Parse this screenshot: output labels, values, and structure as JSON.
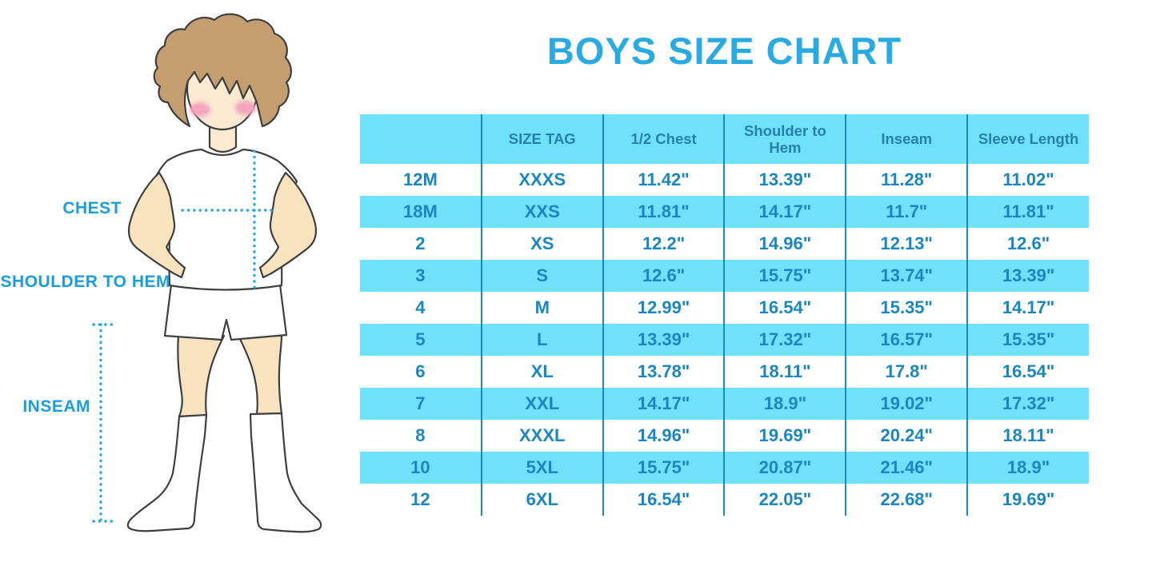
{
  "title": "BOYS SIZE CHART",
  "figure": {
    "description": "cartoon boy in white t-shirt, shorts and knee socks with dotted measurement guides",
    "labels": {
      "chest": "CHEST",
      "shoulder_to_hem": "SHOULDER TO HEM",
      "inseam": "INSEAM"
    }
  },
  "colors": {
    "title_blue": "#29ABE2",
    "label_blue": "#189FDB",
    "stripe_cyan": "#70E1FA",
    "divider_blue": "#1787C6",
    "header_text": "#2581AC",
    "cell_text": "#1987C3",
    "dotted_line": "#29A9E0"
  },
  "chart_data": {
    "type": "table",
    "title": "BOYS SIZE CHART",
    "columns": [
      "",
      "SIZE TAG",
      "1/2 Chest",
      "Shoulder to Hem",
      "Inseam",
      "Sleeve Length"
    ],
    "rows": [
      [
        "12M",
        "XXXS",
        "11.42\"",
        "13.39\"",
        "11.28\"",
        "11.02\""
      ],
      [
        "18M",
        "XXS",
        "11.81\"",
        "14.17\"",
        "11.7\"",
        "11.81\""
      ],
      [
        "2",
        "XS",
        "12.2\"",
        "14.96\"",
        "12.13\"",
        "12.6\""
      ],
      [
        "3",
        "S",
        "12.6\"",
        "15.75\"",
        "13.74\"",
        "13.39\""
      ],
      [
        "4",
        "M",
        "12.99\"",
        "16.54\"",
        "15.35\"",
        "14.17\""
      ],
      [
        "5",
        "L",
        "13.39\"",
        "17.32\"",
        "16.57\"",
        "15.35\""
      ],
      [
        "6",
        "XL",
        "13.78\"",
        "18.11\"",
        "17.8\"",
        "16.54\""
      ],
      [
        "7",
        "XXL",
        "14.17\"",
        "18.9\"",
        "19.02\"",
        "17.32\""
      ],
      [
        "8",
        "XXXL",
        "14.96\"",
        "19.69\"",
        "20.24\"",
        "18.11\""
      ],
      [
        "10",
        "5XL",
        "15.75\"",
        "20.87\"",
        "21.46\"",
        "18.9\""
      ],
      [
        "12",
        "6XL",
        "16.54\"",
        "22.05\"",
        "22.68\"",
        "19.69\""
      ]
    ],
    "layout": "header row cyan; data rows alternate white/cyan starting white; vertical blue dividers between columns; no outer border"
  }
}
